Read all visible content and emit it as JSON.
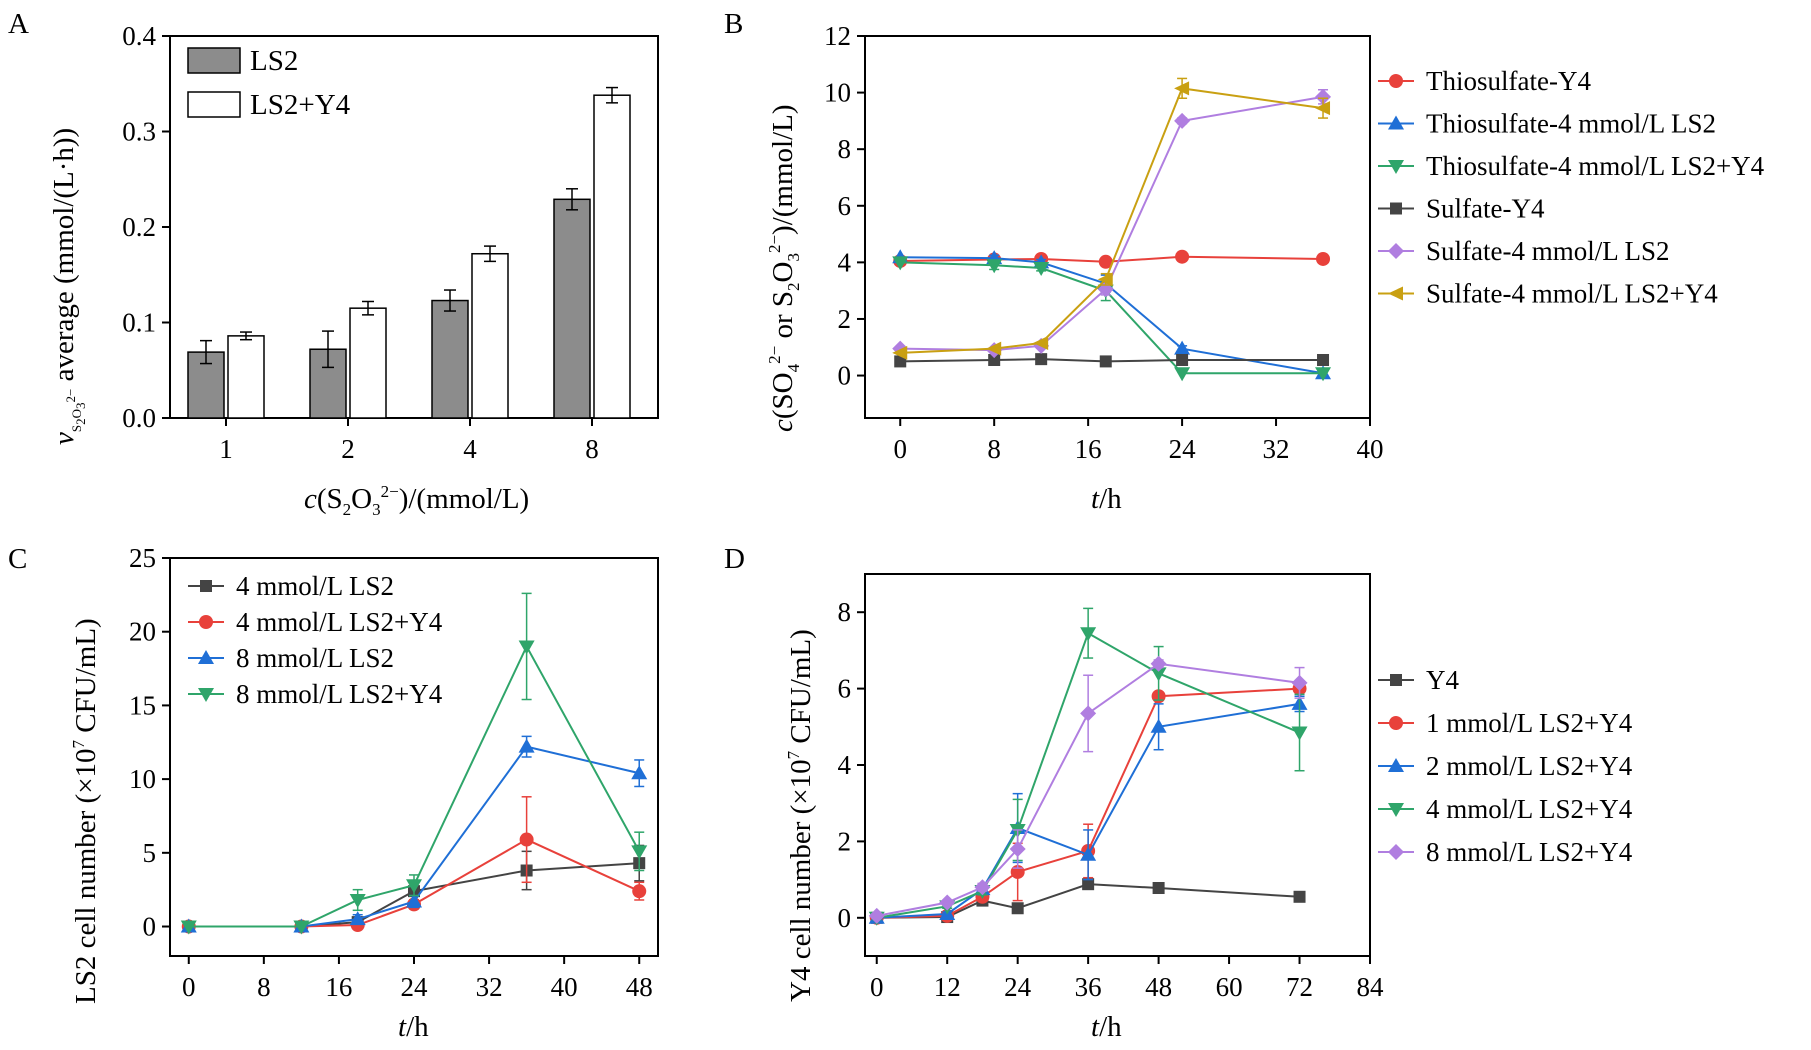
{
  "colors": {
    "red": "#e8413b",
    "blue": "#1f6fd6",
    "green": "#2fa56a",
    "gray": "#444444",
    "violet": "#b07ee0",
    "gold": "#c9a012",
    "bar_gray": "#8c8c8c"
  },
  "chart_data": [
    {
      "panel": "A",
      "type": "bar",
      "categories": [
        "1",
        "2",
        "4",
        "8"
      ],
      "series": [
        {
          "name": "LS2",
          "values": [
            0.069,
            0.072,
            0.123,
            0.229
          ],
          "errors": [
            0.012,
            0.019,
            0.011,
            0.011
          ],
          "fill": "#8c8c8c"
        },
        {
          "name": "LS2+Y4",
          "values": [
            0.086,
            0.115,
            0.172,
            0.338
          ],
          "errors": [
            0.004,
            0.007,
            0.008,
            0.008
          ],
          "fill": "#ffffff"
        }
      ],
      "ylim": [
        0,
        0.4
      ],
      "yticks": [
        "0.0",
        "0.1",
        "0.2",
        "0.3",
        "0.4"
      ],
      "xlabel": {
        "main": "c",
        "paren": "(S",
        "sub1": "2",
        "mid": "O",
        "sub2": "3",
        "sup": "2−",
        "tail": ")/(mmol/L)"
      },
      "ylabel": {
        "v": "v",
        "sub": "S",
        "sub_a": "2",
        "sub_mid": "O",
        "sub_b": "3",
        "sub_c": "2−",
        "rest": " average (mmol/(L·h))"
      },
      "legend_position": "top-left"
    },
    {
      "panel": "B",
      "type": "line",
      "xlim": [
        -3,
        40
      ],
      "ylim": [
        -1.5,
        12
      ],
      "xticks": [
        0,
        8,
        16,
        24,
        32,
        40
      ],
      "yticks": [
        0,
        2,
        4,
        6,
        8,
        10,
        12
      ],
      "xlabel": {
        "t": "t",
        "rest": "/h"
      },
      "ylabel": {
        "c": "c",
        "a": "(SO",
        "s4": "4",
        "sp2": "2−",
        "b": " or S",
        "s2": "2",
        "c2": "O",
        "s3": "3",
        "sp3": "2−",
        "d": ")/(mmol/L)"
      },
      "series": [
        {
          "name": "Thiosulfate-Y4",
          "color": "red",
          "marker": "circle",
          "x": [
            0,
            8,
            12,
            17.5,
            24,
            36
          ],
          "y": [
            4.05,
            4.1,
            4.12,
            4.02,
            4.2,
            4.12
          ],
          "err": [
            0.05,
            0.05,
            0.05,
            0.05,
            0.05,
            0.05
          ]
        },
        {
          "name": "Thiosulfate-4 mmol/L LS2",
          "color": "blue",
          "marker": "tri-up",
          "x": [
            0,
            8,
            12,
            17.5,
            24,
            36
          ],
          "y": [
            4.18,
            4.15,
            4.0,
            3.25,
            0.95,
            0.08
          ],
          "err": [
            0.05,
            0.1,
            0.1,
            0.3,
            0.1,
            0.05
          ]
        },
        {
          "name": "Thiosulfate-4 mmol/L LS2+Y4",
          "color": "green",
          "marker": "tri-down",
          "x": [
            0,
            8,
            12,
            17.5,
            24,
            36
          ],
          "y": [
            4.0,
            3.9,
            3.8,
            3.0,
            0.08,
            0.08
          ],
          "err": [
            0.05,
            0.15,
            0.1,
            0.35,
            0.05,
            0.05
          ]
        },
        {
          "name": "Sulfate-Y4",
          "color": "gray",
          "marker": "square",
          "x": [
            0,
            8,
            12,
            17.5,
            24,
            36
          ],
          "y": [
            0.5,
            0.55,
            0.58,
            0.5,
            0.55,
            0.55
          ],
          "err": [
            0.05,
            0.05,
            0.05,
            0.05,
            0.05,
            0.05
          ]
        },
        {
          "name": "Sulfate-4 mmol/L LS2",
          "color": "violet",
          "marker": "diamond",
          "x": [
            0,
            8,
            12,
            17.5,
            24,
            36
          ],
          "y": [
            0.95,
            0.9,
            1.05,
            3.05,
            9.0,
            9.85
          ],
          "err": [
            0.05,
            0.05,
            0.05,
            0.2,
            0.1,
            0.25
          ]
        },
        {
          "name": "Sulfate-4 mmol/L LS2+Y4",
          "color": "gold",
          "marker": "tri-left",
          "x": [
            0,
            8,
            12,
            17.5,
            24,
            36
          ],
          "y": [
            0.8,
            0.95,
            1.15,
            3.4,
            10.15,
            9.45
          ],
          "err": [
            0.05,
            0.05,
            0.05,
            0.2,
            0.35,
            0.35
          ]
        }
      ],
      "legend_position": "right"
    },
    {
      "panel": "C",
      "type": "line",
      "xlim": [
        -2,
        50
      ],
      "ylim": [
        -2,
        25
      ],
      "xticks": [
        0,
        8,
        16,
        24,
        32,
        40,
        48
      ],
      "yticks": [
        0,
        5,
        10,
        15,
        20,
        25
      ],
      "xlabel": {
        "t": "t",
        "rest": "/h"
      },
      "ylabel": {
        "pre": "LS2 cell number (×10",
        "sup": "7",
        "post": " CFU/mL)"
      },
      "series": [
        {
          "name": "4 mmol/L LS2",
          "color": "gray",
          "marker": "square",
          "x": [
            0,
            12,
            18,
            24,
            36,
            48
          ],
          "y": [
            0,
            0,
            0.3,
            2.4,
            3.8,
            4.3
          ],
          "err": [
            0.1,
            0.1,
            0.3,
            0.6,
            1.3,
            1.2
          ]
        },
        {
          "name": "4 mmol/L LS2+Y4",
          "color": "red",
          "marker": "circle",
          "x": [
            0,
            12,
            18,
            24,
            36,
            48
          ],
          "y": [
            0,
            0,
            0.1,
            1.5,
            5.9,
            2.4
          ],
          "err": [
            0.1,
            0.1,
            0.2,
            0.3,
            2.9,
            0.6
          ]
        },
        {
          "name": "8 mmol/L LS2",
          "color": "blue",
          "marker": "tri-up",
          "x": [
            0,
            12,
            18,
            24,
            36,
            48
          ],
          "y": [
            0,
            0,
            0.5,
            1.7,
            12.2,
            10.4
          ],
          "err": [
            0.1,
            0.1,
            0.3,
            0.4,
            0.7,
            0.9
          ]
        },
        {
          "name": "8 mmol/L LS2+Y4",
          "color": "green",
          "marker": "tri-down",
          "x": [
            0,
            12,
            18,
            24,
            36,
            48
          ],
          "y": [
            0,
            0,
            1.8,
            2.8,
            19.0,
            5.1
          ],
          "err": [
            0.1,
            0.1,
            0.7,
            0.7,
            3.6,
            1.3
          ]
        }
      ],
      "legend_position": "top-left"
    },
    {
      "panel": "D",
      "type": "line",
      "xlim": [
        -2,
        84
      ],
      "ylim": [
        -1,
        9
      ],
      "xticks": [
        0,
        12,
        24,
        36,
        48,
        60,
        72,
        84
      ],
      "yticks": [
        0,
        2,
        4,
        6,
        8
      ],
      "xlabel": {
        "t": "t",
        "rest": "/h"
      },
      "ylabel": {
        "pre": "Y4 cell number (×10",
        "sup": "7",
        "post": " CFU/mL)"
      },
      "series": [
        {
          "name": "Y4",
          "color": "gray",
          "marker": "square",
          "x": [
            0,
            12,
            18,
            24,
            36,
            48,
            72
          ],
          "y": [
            0,
            0.02,
            0.45,
            0.25,
            0.88,
            0.78,
            0.55
          ],
          "err": [
            0.05,
            0.05,
            0.1,
            0.05,
            0.1,
            0.05,
            0.05
          ]
        },
        {
          "name": "1 mmol/L LS2+Y4",
          "color": "red",
          "marker": "circle",
          "x": [
            0,
            12,
            18,
            24,
            36,
            48,
            72
          ],
          "y": [
            0,
            0.05,
            0.55,
            1.2,
            1.75,
            5.8,
            6.0
          ],
          "err": [
            0.05,
            0.05,
            0.1,
            0.75,
            0.7,
            0.1,
            0.1
          ]
        },
        {
          "name": "2 mmol/L LS2+Y4",
          "color": "blue",
          "marker": "tri-up",
          "x": [
            0,
            12,
            18,
            24,
            36,
            48,
            72
          ],
          "y": [
            0,
            0.1,
            0.75,
            2.35,
            1.65,
            5.0,
            5.6
          ],
          "err": [
            0.05,
            0.05,
            0.1,
            0.9,
            0.65,
            0.6,
            0.2
          ]
        },
        {
          "name": "4 mmol/L LS2+Y4",
          "color": "green",
          "marker": "tri-down",
          "x": [
            0,
            12,
            18,
            24,
            36,
            48,
            72
          ],
          "y": [
            0,
            0.3,
            0.7,
            2.3,
            7.45,
            6.4,
            4.85
          ],
          "err": [
            0.05,
            0.05,
            0.1,
            0.8,
            0.65,
            0.7,
            1.0
          ]
        },
        {
          "name": "8 mmol/L LS2+Y4",
          "color": "violet",
          "marker": "diamond",
          "x": [
            0,
            12,
            18,
            24,
            36,
            48,
            72
          ],
          "y": [
            0.05,
            0.4,
            0.8,
            1.8,
            5.35,
            6.65,
            6.15
          ],
          "err": [
            0.05,
            0.05,
            0.1,
            0.5,
            1.0,
            0.1,
            0.4
          ]
        }
      ],
      "legend_position": "right"
    }
  ]
}
